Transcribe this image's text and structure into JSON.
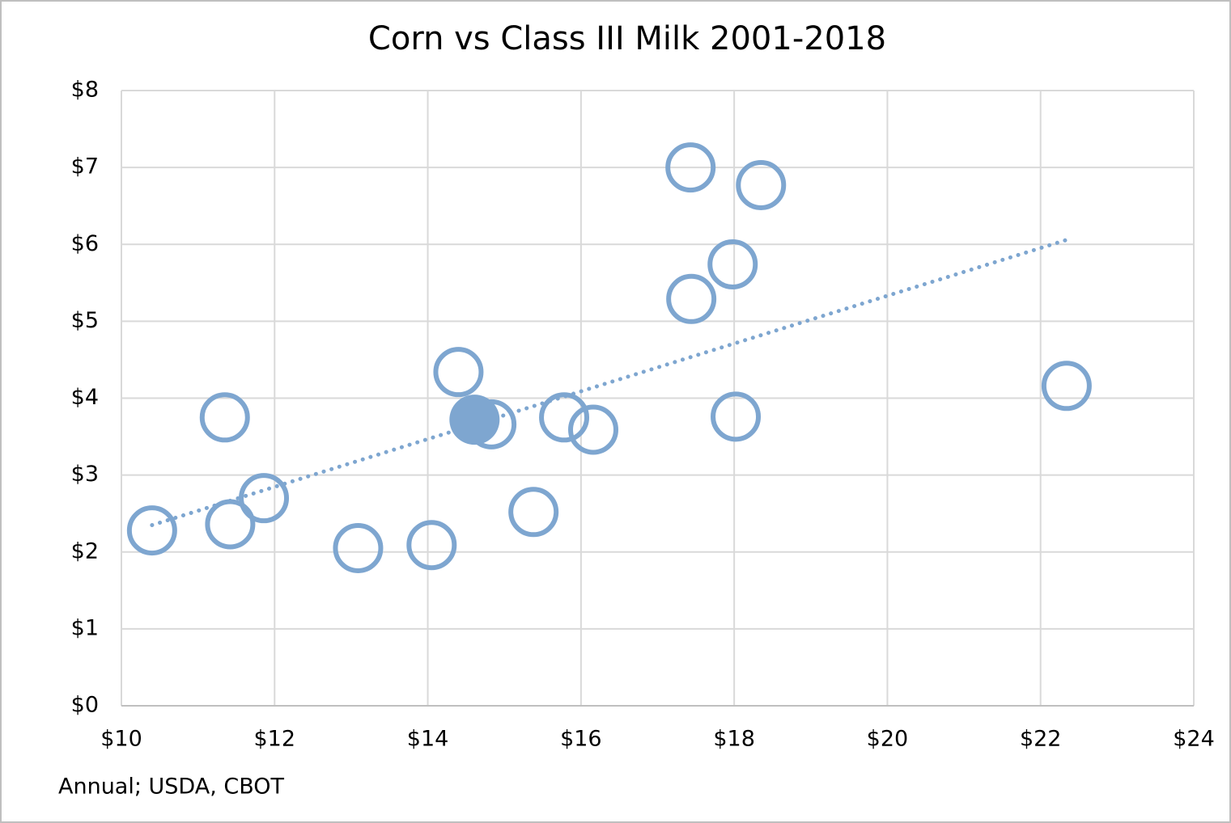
{
  "chart_data": {
    "type": "scatter",
    "title": "Corn vs Class III Milk 2001-2018",
    "source": "Annual; USDA, CBOT",
    "series": [
      {
        "color": "#7ea6d0",
        "marker": "hollow",
        "x": [
          10.4,
          11.35,
          11.42,
          11.86,
          13.09,
          14.05,
          14.4,
          14.83,
          15.38,
          15.78,
          16.16,
          17.43,
          17.44,
          17.98,
          18.02,
          18.35,
          22.34
        ],
        "values": [
          2.28,
          3.75,
          2.36,
          2.7,
          2.05,
          2.09,
          4.34,
          3.66,
          2.52,
          3.75,
          3.59,
          7.0,
          5.29,
          5.74,
          3.76,
          6.77,
          4.16
        ]
      },
      {
        "color": "#7ea6d0",
        "marker": "filled",
        "x": [
          14.61
        ],
        "values": [
          3.72
        ]
      }
    ],
    "trendline": {
      "type": "linear",
      "style": "dotted",
      "color": "#7ea6d0"
    },
    "xlim": [
      10,
      24
    ],
    "xticks": [
      {
        "value": 10,
        "label": "$10"
      },
      {
        "value": 12,
        "label": "$12"
      },
      {
        "value": 14,
        "label": "$14"
      },
      {
        "value": 16,
        "label": "$16"
      },
      {
        "value": 18,
        "label": "$18"
      },
      {
        "value": 20,
        "label": "$20"
      },
      {
        "value": 22,
        "label": "$22"
      },
      {
        "value": 24,
        "label": "$24"
      }
    ],
    "ylim": [
      0,
      8
    ],
    "yticks": [
      {
        "value": 0,
        "label": "$0"
      },
      {
        "value": 1,
        "label": "$1"
      },
      {
        "value": 2,
        "label": "$2"
      },
      {
        "value": 3,
        "label": "$3"
      },
      {
        "value": 4,
        "label": "$4"
      },
      {
        "value": 5,
        "label": "$5"
      },
      {
        "value": 6,
        "label": "$6"
      },
      {
        "value": 7,
        "label": "$7"
      },
      {
        "value": 8,
        "label": "$8"
      }
    ],
    "grid": true
  }
}
